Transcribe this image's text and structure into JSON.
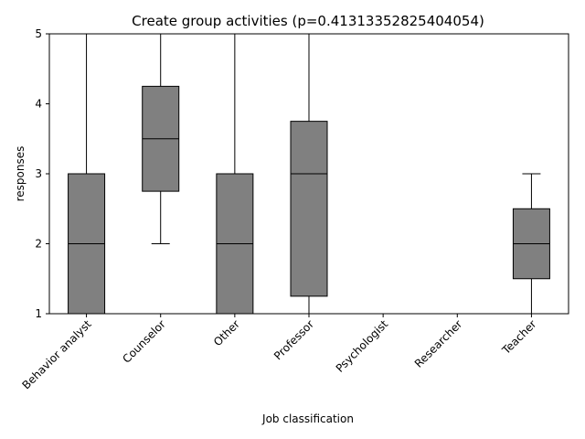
{
  "chart_data": {
    "type": "box",
    "title": "Create group activities (p=0.41313352825404054)",
    "xlabel": "Job classification",
    "ylabel": "responses",
    "ylim": [
      1,
      5
    ],
    "yticks": [
      "1",
      "2",
      "3",
      "4",
      "5"
    ],
    "grid": false,
    "box_color": "#808080",
    "categories": [
      "Behavior analyst",
      "Counselor",
      "Other",
      "Professor",
      "Psychologist",
      "Researcher",
      "Teacher"
    ],
    "boxes": [
      {
        "category": "Behavior analyst",
        "whisker_low": 1,
        "q1": 1,
        "median": 2,
        "q3": 3,
        "whisker_high": 5
      },
      {
        "category": "Counselor",
        "whisker_low": 2,
        "q1": 2.75,
        "median": 3.5,
        "q3": 4.25,
        "whisker_high": 5
      },
      {
        "category": "Other",
        "whisker_low": 1,
        "q1": 1,
        "median": 2,
        "q3": 3,
        "whisker_high": 5
      },
      {
        "category": "Professor",
        "whisker_low": 1,
        "q1": 1.25,
        "median": 3,
        "q3": 3.75,
        "whisker_high": 5
      },
      {
        "category": "Psychologist",
        "whisker_low": 5,
        "q1": 5,
        "median": 5,
        "q3": 5,
        "whisker_high": 5
      },
      {
        "category": "Researcher",
        "whisker_low": 1,
        "q1": 1,
        "median": 1,
        "q3": 1,
        "whisker_high": 1
      },
      {
        "category": "Teacher",
        "whisker_low": 1,
        "q1": 1.5,
        "median": 2,
        "q3": 2.5,
        "whisker_high": 3
      }
    ]
  }
}
